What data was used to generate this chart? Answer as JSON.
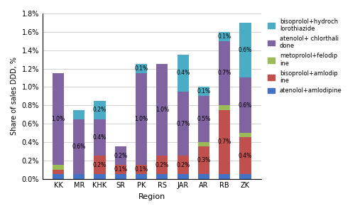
{
  "regions": [
    "KK",
    "MR",
    "KHK",
    "SR",
    "PK",
    "RS",
    "JAR",
    "AR",
    "RB",
    "ZK"
  ],
  "series": {
    "atenolol+amlodipine": [
      0.0005,
      0.0005,
      0.0005,
      0.0005,
      0.0005,
      0.0005,
      0.0005,
      0.0005,
      0.0005,
      0.0005
    ],
    "bisoprolol+amlodipine": [
      0.0005,
      0.0,
      0.002,
      0.001,
      0.001,
      0.002,
      0.002,
      0.003,
      0.007,
      0.004
    ],
    "metoprolol+felodipine": [
      0.0005,
      0.0,
      0.0,
      0.0,
      0.0,
      0.0,
      0.0,
      0.0005,
      0.0005,
      0.0005
    ],
    "atenolol+chlorthalidone": [
      0.01,
      0.006,
      0.004,
      0.002,
      0.01,
      0.01,
      0.007,
      0.005,
      0.007,
      0.006
    ],
    "bisoprolol+hydrochlorothiazide": [
      0.0,
      0.001,
      0.002,
      0.0,
      0.001,
      0.0,
      0.004,
      0.001,
      0.001,
      0.006
    ]
  },
  "colors": {
    "atenolol+amlodipine": "#4472c4",
    "bisoprolol+amlodipine": "#c0504d",
    "metoprolol+felodipine": "#9bbb59",
    "atenolol+chlorthalidone": "#8064a2",
    "bisoprolol+hydrochlorothiazide": "#4bacc6"
  },
  "bar_labels": {
    "atenolol+chlorthalidone": [
      "1.0%",
      "0.6%",
      "0.4%",
      "0.2%",
      "1.0%",
      "1.0%",
      "0.7%",
      "0.5%",
      "0.7%",
      "0.6%"
    ],
    "bisoprolol+amlodipine": [
      "",
      "",
      "0.2%",
      "0.1%",
      "0.1%",
      "0.2%",
      "0.2%",
      "0.3%",
      "0.7%",
      "0.4%"
    ],
    "bisoprolol+hydrochlorothiazide": [
      "",
      "",
      "0.2%",
      "",
      "0.1%",
      "",
      "0.4%",
      "0.1%",
      "0.1%",
      "0.6%"
    ]
  },
  "ylabel": "Share of sales DDD, %",
  "xlabel": "Region",
  "ylim": [
    0,
    0.018
  ],
  "yticks": [
    0.0,
    0.002,
    0.004,
    0.006,
    0.008,
    0.01,
    0.012,
    0.014,
    0.016,
    0.018
  ],
  "yticklabels": [
    "0.0%",
    "0.2%",
    "0.4%",
    "0.6%",
    "0.8%",
    "1.0%",
    "1.2%",
    "1.4%",
    "1.6%",
    "1.8%"
  ],
  "background_color": "#ffffff",
  "grid_color": "#c0c0c0"
}
